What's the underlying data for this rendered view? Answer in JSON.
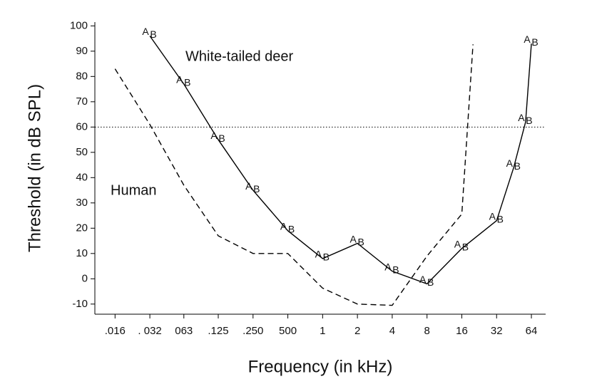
{
  "chart_data": {
    "type": "line",
    "xlabel": "Frequency (in kHz)",
    "ylabel": "Threshold (in dB SPL)",
    "xscale": "log2",
    "xlim": [
      0.0107,
      85
    ],
    "ylim": [
      -14,
      101.5
    ],
    "xticks": [
      {
        "value": 0.016,
        "label": ".016"
      },
      {
        "value": 0.032,
        "label": ". 032"
      },
      {
        "value": 0.063,
        "label": "063"
      },
      {
        "value": 0.125,
        "label": ".125"
      },
      {
        "value": 0.25,
        "label": ".250"
      },
      {
        "value": 0.5,
        "label": "500"
      },
      1,
      2,
      4,
      8,
      16,
      32,
      64
    ],
    "yticks": [
      -10,
      0,
      10,
      20,
      30,
      40,
      50,
      60,
      70,
      80,
      90,
      100
    ],
    "reference_line": 60,
    "point_labels": [
      "A",
      "B"
    ],
    "series": [
      {
        "name": "White-tailed deer",
        "color": "#000000",
        "dash": "solid",
        "point_labels_shown": true,
        "x": [
          0.032,
          0.063,
          0.125,
          0.25,
          0.5,
          1,
          2,
          4,
          8,
          16,
          32,
          45,
          57,
          64
        ],
        "values": [
          96,
          77,
          55,
          35,
          19,
          8,
          14,
          3,
          -2,
          12,
          23,
          44,
          62,
          93
        ]
      },
      {
        "name": "Human",
        "color": "#000000",
        "dash": "dashed",
        "point_labels_shown": false,
        "x": [
          0.016,
          0.032,
          0.063,
          0.125,
          0.25,
          0.5,
          1,
          2,
          4,
          8,
          16,
          20
        ],
        "values": [
          83,
          61,
          37,
          17,
          10,
          10,
          -3.7,
          -10,
          -10.5,
          9,
          25.6,
          92.7
        ]
      }
    ]
  }
}
